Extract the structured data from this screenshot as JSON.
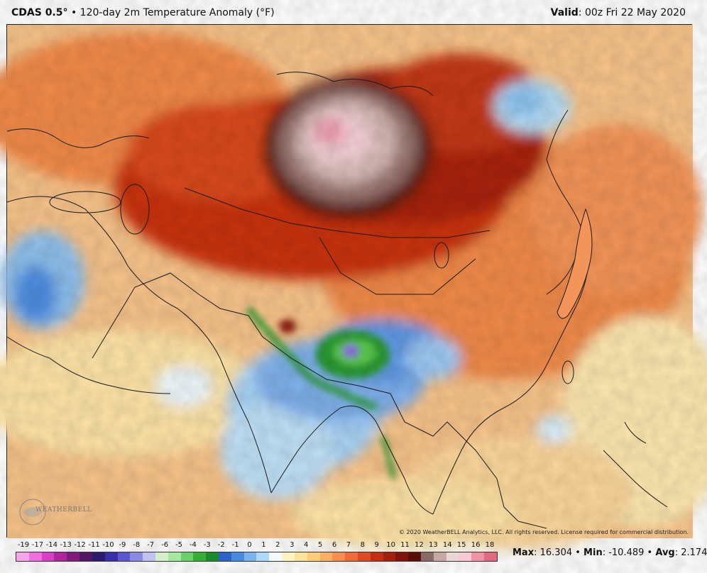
{
  "header": {
    "model": "CDAS 0.5",
    "degree": "°",
    "separator": "•",
    "product": "120-day 2m Temperature Anomaly (°F)",
    "valid_label": "Valid",
    "valid_value": ": 00z Fri 22 May 2020"
  },
  "map": {
    "copyright": "© 2020 WeatherBELL Analytics, LLC. All rights reserved. License required for commercial distribution.",
    "logo_text": "WEATHERBELL"
  },
  "legend": {
    "labels": [
      "-19",
      "-17",
      "-14",
      "-13",
      "-12",
      "-11",
      "-10",
      "-9",
      "-8",
      "-7",
      "-6",
      "-5",
      "-4",
      "-3",
      "-2",
      "-1",
      "0",
      "1",
      "2",
      "3",
      "4",
      "5",
      "6",
      "7",
      "8",
      "9",
      "10",
      "11",
      "12",
      "13",
      "14",
      "15",
      "16",
      "18"
    ],
    "colors": [
      "#f6a6e8",
      "#ef6fdf",
      "#d93fc8",
      "#b0249f",
      "#801a7c",
      "#551564",
      "#2c1a6e",
      "#3a2fa8",
      "#5a58d0",
      "#8a8ae6",
      "#c0c0f2",
      "#d4f0c8",
      "#a6e8a0",
      "#6ad06a",
      "#34b034",
      "#1a8a2a",
      "#2a62c8",
      "#4a8ae0",
      "#7ab4ee",
      "#aedaf6",
      "#f3fbff",
      "#fff3c2",
      "#ffe39a",
      "#ffcd7a",
      "#fdb062",
      "#f98e4e",
      "#f06c38",
      "#e04a22",
      "#c42e12",
      "#a4200c",
      "#801408",
      "#5a1008",
      "#8a6a66",
      "#c7a8a4",
      "#ead6d4",
      "#f7c9d2",
      "#ef93a5",
      "#e06a80"
    ]
  },
  "stats": {
    "max_label": "Max",
    "max_value": ": 16.304",
    "min_label": "Min",
    "min_value": ": -10.489",
    "avg_label": "Avg",
    "avg_value": ": 2.174",
    "sep": " • "
  }
}
